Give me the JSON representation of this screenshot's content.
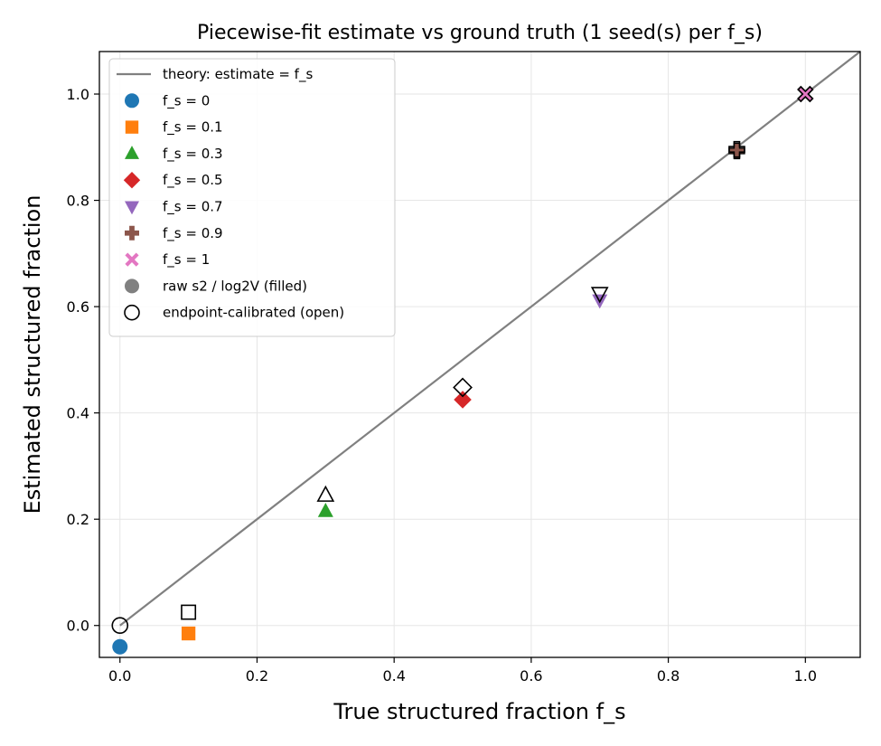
{
  "chart_data": {
    "type": "scatter",
    "title": "Piecewise-fit estimate vs ground truth (1 seed(s) per f_s)",
    "xlabel": "True structured fraction f_s",
    "ylabel": "Estimated structured fraction",
    "xlim": [
      -0.03,
      1.08
    ],
    "ylim": [
      -0.06,
      1.08
    ],
    "xticks": [
      0.0,
      0.2,
      0.4,
      0.6,
      0.8,
      1.0
    ],
    "yticks": [
      0.0,
      0.2,
      0.4,
      0.6,
      0.8,
      1.0
    ],
    "xtick_labels": [
      "0.0",
      "0.2",
      "0.4",
      "0.6",
      "0.8",
      "1.0"
    ],
    "ytick_labels": [
      "0.0",
      "0.2",
      "0.4",
      "0.6",
      "0.8",
      "1.0"
    ],
    "grid": true,
    "legend_position": "upper-left",
    "theory_line": {
      "label": "theory: estimate = f_s",
      "color": "#808080",
      "x": [
        0,
        1.08
      ],
      "y": [
        0,
        1.08
      ]
    },
    "series": [
      {
        "name": "f_s = 0",
        "marker": "circle",
        "color": "#1f77b4",
        "x": 0.0,
        "raw": -0.04,
        "calibrated": 0.0
      },
      {
        "name": "f_s = 0.1",
        "marker": "square",
        "color": "#ff7f0e",
        "x": 0.1,
        "raw": -0.015,
        "calibrated": 0.025
      },
      {
        "name": "f_s = 0.3",
        "marker": "triangle-up",
        "color": "#2ca02c",
        "x": 0.3,
        "raw": 0.215,
        "calibrated": 0.245
      },
      {
        "name": "f_s = 0.5",
        "marker": "diamond",
        "color": "#d62728",
        "x": 0.5,
        "raw": 0.425,
        "calibrated": 0.448
      },
      {
        "name": "f_s = 0.7",
        "marker": "triangle-down",
        "color": "#9467bd",
        "x": 0.7,
        "raw": 0.612,
        "calibrated": 0.625
      },
      {
        "name": "f_s = 0.9",
        "marker": "plus",
        "color": "#8c564b",
        "x": 0.9,
        "raw": 0.893,
        "calibrated": 0.896
      },
      {
        "name": "f_s = 1",
        "marker": "x",
        "color": "#e377c2",
        "x": 1.0,
        "raw": 1.0,
        "calibrated": 1.0
      }
    ],
    "style_legend": [
      {
        "label": "raw s2 / log2V (filled)",
        "style": "filled",
        "color": "#808080"
      },
      {
        "label": "endpoint-calibrated (open)",
        "style": "open",
        "color": "#000000"
      }
    ]
  }
}
